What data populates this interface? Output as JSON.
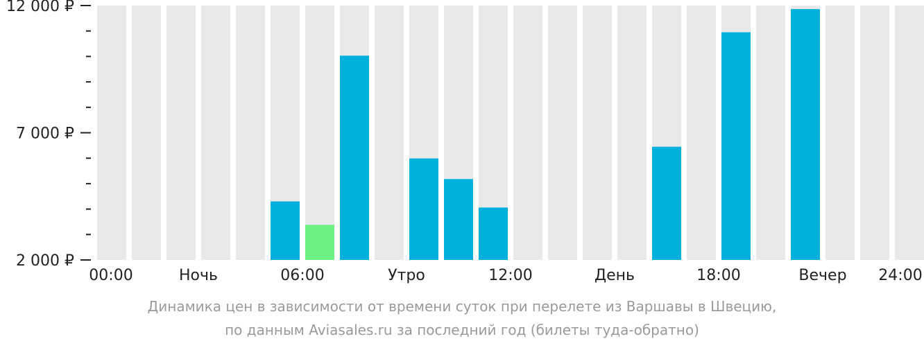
{
  "chart_data": {
    "type": "bar",
    "categories": [
      "00:00",
      "01:00",
      "02:00",
      "03:00",
      "04:00",
      "05:00",
      "06:00",
      "07:00",
      "08:00",
      "09:00",
      "10:00",
      "11:00",
      "12:00",
      "13:00",
      "14:00",
      "15:00",
      "16:00",
      "17:00",
      "18:00",
      "19:00",
      "20:00",
      "21:00",
      "22:00",
      "23:00"
    ],
    "values": [
      null,
      null,
      null,
      null,
      null,
      4300,
      3380,
      10030,
      null,
      5990,
      5180,
      4060,
      null,
      null,
      null,
      null,
      6450,
      null,
      10950,
      null,
      11860,
      null,
      null,
      null
    ],
    "ylim": [
      2000,
      12000
    ],
    "y_tick_labels": [
      {
        "value": 12000,
        "label": "12 000 ₽"
      },
      {
        "value": 7000,
        "label": "7 000 ₽"
      },
      {
        "value": 2000,
        "label": "2 000 ₽"
      }
    ],
    "y_minor_ticks": [
      11000,
      10000,
      9000,
      8000,
      6000,
      5000,
      4000,
      3000
    ],
    "x_tick_labels": [
      {
        "hour": 0,
        "label": "00:00"
      },
      {
        "hour": 3,
        "label": "Ночь"
      },
      {
        "hour": 6,
        "label": "06:00"
      },
      {
        "hour": 9,
        "label": "Утро"
      },
      {
        "hour": 12,
        "label": "12:00"
      },
      {
        "hour": 15,
        "label": "День"
      },
      {
        "hour": 18,
        "label": "18:00"
      },
      {
        "hour": 21,
        "label": "Вечер"
      },
      {
        "hour": 24,
        "label": "24:00"
      }
    ],
    "highlight_index": 6,
    "colors": {
      "bar": "#00b0dd",
      "highlight": "#6ef083",
      "background_column": "#e9e9e9",
      "axis": "#222222"
    }
  },
  "caption": {
    "line1": "Динамика цен в зависимости от времени суток при перелете из Варшавы в Швецию,",
    "line2": "по данным Aviasales.ru за последний год (билеты туда-обратно)"
  }
}
